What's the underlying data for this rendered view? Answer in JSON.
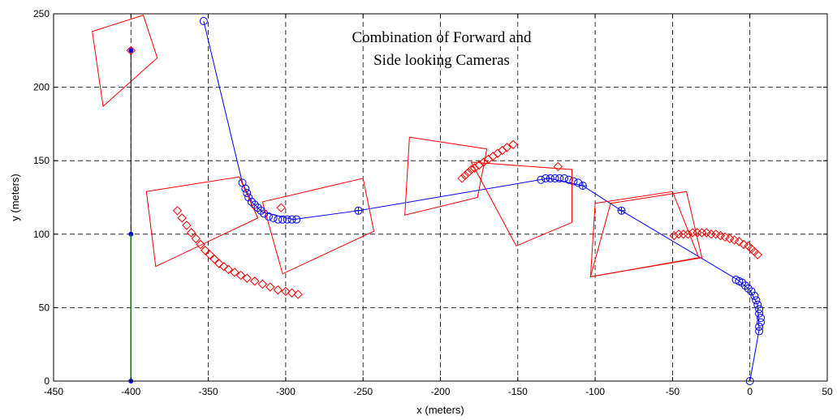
{
  "chart_data": {
    "type": "scatter",
    "title_lines": [
      "Combination of Forward and",
      "Side looking Cameras"
    ],
    "xlabel": "x (meters)",
    "ylabel": "y (meters)",
    "xlim": [
      -450,
      50
    ],
    "ylim": [
      0,
      250
    ],
    "x_ticks": [
      -450,
      -400,
      -350,
      -300,
      -250,
      -200,
      -150,
      -100,
      -50,
      0,
      50
    ],
    "y_ticks": [
      0,
      50,
      100,
      150,
      200,
      250
    ],
    "grid": true,
    "grid_style": "dashed",
    "colors": {
      "blue": "#0000ff",
      "red": "#ff0000",
      "green": "#008000",
      "black": "#000000"
    },
    "series": [
      {
        "role": "vehicle-path",
        "color": "#0000ff",
        "mode": "line",
        "points": [
          [
            0,
            0
          ],
          [
            6,
            35
          ],
          [
            5,
            52
          ],
          [
            0,
            62
          ],
          [
            -8,
            69
          ],
          [
            -83,
            116
          ],
          [
            -108,
            133
          ],
          [
            -130,
            138
          ],
          [
            -253,
            116
          ],
          [
            -295,
            110
          ],
          [
            -315,
            115
          ],
          [
            -322,
            122
          ],
          [
            -328,
            135
          ],
          [
            -353,
            245
          ]
        ]
      },
      {
        "role": "camera-positions",
        "color": "#0000ff",
        "mode": "circle-markers",
        "points": [
          [
            0,
            0
          ],
          [
            6,
            34
          ],
          [
            6,
            37
          ],
          [
            7,
            40
          ],
          [
            7,
            43
          ],
          [
            6,
            46
          ],
          [
            6,
            49
          ],
          [
            5,
            52
          ],
          [
            4,
            55
          ],
          [
            3,
            58
          ],
          [
            1,
            61
          ],
          [
            -1,
            63
          ],
          [
            -3,
            65
          ],
          [
            -5,
            67
          ],
          [
            -7,
            68
          ],
          [
            -9,
            69
          ],
          [
            -83,
            116
          ],
          [
            -108,
            133
          ],
          [
            -111,
            135
          ],
          [
            -114,
            136
          ],
          [
            -117,
            137
          ],
          [
            -120,
            138
          ],
          [
            -123,
            138
          ],
          [
            -126,
            138
          ],
          [
            -129,
            138
          ],
          [
            -132,
            138
          ],
          [
            -135,
            137
          ],
          [
            -253,
            116
          ],
          [
            -293,
            110
          ],
          [
            -296,
            110
          ],
          [
            -299,
            110
          ],
          [
            -302,
            110
          ],
          [
            -305,
            110
          ],
          [
            -308,
            111
          ],
          [
            -311,
            112
          ],
          [
            -314,
            114
          ],
          [
            -316,
            116
          ],
          [
            -318,
            118
          ],
          [
            -320,
            120
          ],
          [
            -322,
            122
          ],
          [
            -324,
            125
          ],
          [
            -325,
            128
          ],
          [
            -326,
            131
          ],
          [
            -328,
            135
          ],
          [
            -353,
            245
          ]
        ]
      },
      {
        "role": "key-positions",
        "color": "#0000ff",
        "mode": "plus-markers",
        "points": [
          [
            -83,
            116
          ],
          [
            -253,
            116
          ],
          [
            -108,
            133
          ],
          [
            -130,
            138
          ]
        ]
      },
      {
        "role": "target-estimates",
        "color": "#ff0000",
        "mode": "diamond-markers",
        "points": [
          [
            -370,
            116
          ],
          [
            -367,
            111
          ],
          [
            -364,
            106
          ],
          [
            -361,
            101
          ],
          [
            -358,
            97
          ],
          [
            -355,
            93
          ],
          [
            -352,
            89
          ],
          [
            -349,
            86
          ],
          [
            -346,
            83
          ],
          [
            -343,
            80
          ],
          [
            -340,
            78
          ],
          [
            -337,
            76
          ],
          [
            -333,
            74
          ],
          [
            -329,
            72
          ],
          [
            -325,
            70
          ],
          [
            -320,
            68
          ],
          [
            -315,
            66
          ],
          [
            -310,
            64
          ],
          [
            -305,
            62
          ],
          [
            -300,
            61
          ],
          [
            -296,
            60
          ],
          [
            -292,
            59
          ],
          [
            -186,
            138
          ],
          [
            -184,
            140
          ],
          [
            -182,
            142
          ],
          [
            -180,
            144
          ],
          [
            -178,
            145
          ],
          [
            -175,
            147
          ],
          [
            -172,
            149
          ],
          [
            -169,
            151
          ],
          [
            -166,
            153
          ],
          [
            -163,
            155
          ],
          [
            -160,
            157
          ],
          [
            -157,
            159
          ],
          [
            -153,
            161
          ],
          [
            -49,
            99
          ],
          [
            -46,
            100
          ],
          [
            -43,
            100
          ],
          [
            -40,
            100
          ],
          [
            -37,
            101
          ],
          [
            -34,
            101
          ],
          [
            -31,
            101
          ],
          [
            -28,
            101
          ],
          [
            -25,
            100
          ],
          [
            -22,
            100
          ],
          [
            -19,
            99
          ],
          [
            -16,
            98
          ],
          [
            -13,
            97
          ],
          [
            -10,
            96
          ],
          [
            -7,
            95
          ],
          [
            -4,
            93
          ],
          [
            -1,
            92
          ],
          [
            1,
            90
          ],
          [
            3,
            88
          ],
          [
            5,
            86
          ],
          [
            -303,
            118
          ],
          [
            -124,
            146
          ],
          [
            -400,
            225
          ]
        ]
      },
      {
        "role": "camera-footprints",
        "color": "#ff0000",
        "mode": "polygons",
        "polygons": [
          [
            [
              -425,
              238
            ],
            [
              -392,
              249
            ],
            [
              -383,
              220
            ],
            [
              -418,
              187
            ]
          ],
          [
            [
              -390,
              129
            ],
            [
              -330,
              139
            ],
            [
              -318,
              111
            ],
            [
              -384,
              78
            ]
          ],
          [
            [
              -315,
              122
            ],
            [
              -250,
              138
            ],
            [
              -243,
              102
            ],
            [
              -302,
              73
            ]
          ],
          [
            [
              -220,
              166
            ],
            [
              -170,
              158
            ],
            [
              -176,
              125
            ],
            [
              -223,
              113
            ]
          ],
          [
            [
              -180,
              149
            ],
            [
              -115,
              144
            ],
            [
              -115,
              108
            ],
            [
              -151,
              92
            ]
          ],
          [
            [
              -100,
              121
            ],
            [
              -50,
              129
            ],
            [
              -33,
              84
            ],
            [
              -103,
              71
            ]
          ],
          [
            [
              -90,
              121
            ],
            [
              -41,
              129
            ],
            [
              -31,
              84
            ],
            [
              -103,
              71
            ]
          ]
        ]
      },
      {
        "role": "reference-points",
        "color": "#0000ff",
        "mode": "dot-markers",
        "points": [
          [
            -400,
            0
          ],
          [
            -400,
            100
          ],
          [
            -400,
            225
          ]
        ]
      },
      {
        "role": "reference-line",
        "color": "#000000",
        "mode": "line",
        "points": [
          [
            -400,
            0
          ],
          [
            -400,
            225
          ]
        ]
      },
      {
        "role": "reference-line-lower",
        "color": "#008000",
        "mode": "line",
        "points": [
          [
            -400,
            0
          ],
          [
            -400,
            100
          ]
        ]
      }
    ]
  }
}
